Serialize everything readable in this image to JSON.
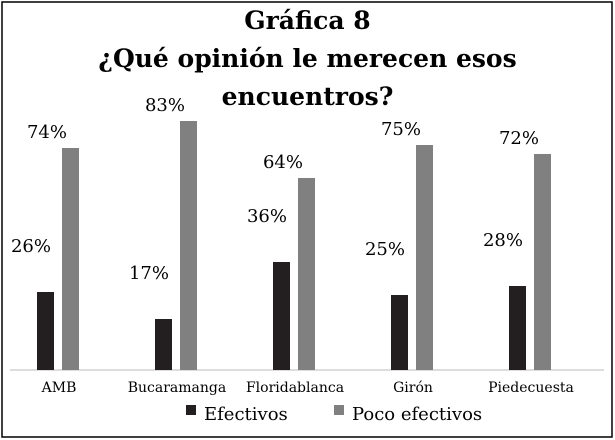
{
  "chart_data": {
    "type": "bar",
    "title": "Gráfica 8",
    "subtitle": "¿Qué opinión le merecen esos encuentros?",
    "categories": [
      "AMB",
      "Bucaramanga",
      "Floridablanca",
      "Girón",
      "Piedecuesta"
    ],
    "series": [
      {
        "name": "Efectivos",
        "color": "#231f20",
        "values": [
          26,
          17,
          36,
          25,
          28
        ],
        "value_labels": [
          "26%",
          "17%",
          "36%",
          "25%",
          "28%"
        ]
      },
      {
        "name": "Poco efectivos",
        "color": "#808080",
        "values": [
          74,
          83,
          64,
          75,
          72
        ],
        "value_labels": [
          "74%",
          "83%",
          "64%",
          "75%",
          "72%"
        ]
      }
    ]
  }
}
